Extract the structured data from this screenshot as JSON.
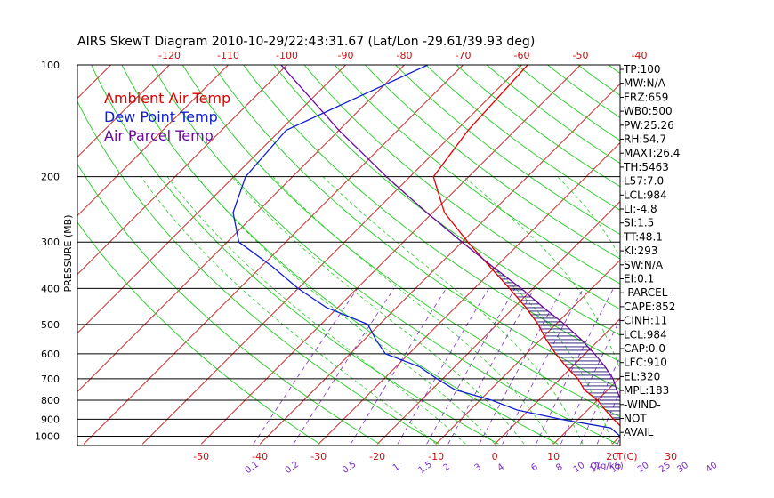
{
  "title": "AIRS SkewT Diagram 2010-10-29/22:43:31.67 (Lat/Lon -29.61/39.93 deg)",
  "chart_data": {
    "type": "line",
    "title": "AIRS SkewT Diagram 2010-10-29/22:43:31.67 (Lat/Lon -29.61/39.93 deg)",
    "ylabel": "PRESSURE (MB)",
    "yscale": "log",
    "ylim": [
      1050,
      100
    ],
    "pressure_ticks": [
      100,
      200,
      300,
      400,
      500,
      600,
      700,
      800,
      900,
      1000
    ],
    "top_temp_ticks": [
      -120,
      -110,
      -100,
      -90,
      -80,
      -70,
      -60,
      -50,
      -40
    ],
    "bottom_temp_ticks": [
      -50,
      -40,
      -30,
      -20,
      -10,
      0,
      10,
      20,
      30
    ],
    "bottom_temp_unit": "T(C)",
    "mixing_ratio_ticks": [
      "0.1",
      "0.2",
      "0.5",
      "1",
      "1.5",
      "2",
      "3",
      "4",
      "6",
      "8",
      "10",
      "12",
      "15",
      "20",
      "25",
      "30",
      "40"
    ],
    "mixing_ratio_unit": "Q(g/kg)",
    "legend": [
      {
        "name": "Ambient Air Temp",
        "color": "#e00000"
      },
      {
        "name": "Dew Point Temp",
        "color": "#1020d0"
      },
      {
        "name": "Air Parcel Temp",
        "color": "#6a0aa0"
      }
    ],
    "legend_position": "top-left",
    "series": [
      {
        "name": "Ambient Air Temp",
        "color": "#e00000",
        "points": [
          [
            1000,
            21.5
          ],
          [
            950,
            19
          ],
          [
            900,
            16
          ],
          [
            850,
            13
          ],
          [
            800,
            10
          ],
          [
            750,
            6
          ],
          [
            700,
            3
          ],
          [
            650,
            -1
          ],
          [
            600,
            -5
          ],
          [
            550,
            -9
          ],
          [
            500,
            -13
          ],
          [
            450,
            -18
          ],
          [
            400,
            -24
          ],
          [
            350,
            -31
          ],
          [
            300,
            -39
          ],
          [
            250,
            -48
          ],
          [
            200,
            -56
          ],
          [
            150,
            -58
          ],
          [
            100,
            -59
          ]
        ]
      },
      {
        "name": "Dew Point Temp",
        "color": "#1020d0",
        "points": [
          [
            1000,
            20
          ],
          [
            950,
            17
          ],
          [
            930,
            13
          ],
          [
            900,
            7
          ],
          [
            850,
            -2
          ],
          [
            800,
            -8
          ],
          [
            750,
            -16
          ],
          [
            700,
            -21
          ],
          [
            650,
            -26
          ],
          [
            600,
            -34
          ],
          [
            550,
            -38
          ],
          [
            500,
            -42
          ],
          [
            450,
            -52
          ],
          [
            400,
            -60
          ],
          [
            350,
            -68
          ],
          [
            300,
            -78
          ],
          [
            250,
            -84
          ],
          [
            200,
            -88
          ],
          [
            150,
            -89
          ],
          [
            100,
            -76
          ]
        ]
      },
      {
        "name": "Air Parcel Temp",
        "color": "#6a0aa0",
        "points": [
          [
            1000,
            22
          ],
          [
            950,
            19.5
          ],
          [
            900,
            18.2
          ],
          [
            850,
            16.3
          ],
          [
            800,
            14
          ],
          [
            750,
            11.5
          ],
          [
            700,
            9
          ],
          [
            650,
            5.6
          ],
          [
            600,
            1.6
          ],
          [
            550,
            -3
          ],
          [
            500,
            -8.5
          ],
          [
            450,
            -15
          ],
          [
            400,
            -22
          ],
          [
            350,
            -30.5
          ],
          [
            300,
            -40
          ],
          [
            250,
            -51
          ],
          [
            200,
            -64
          ],
          [
            150,
            -80
          ],
          [
            100,
            -101
          ]
        ]
      }
    ],
    "cape_shading": {
      "color": "#1a0a6e",
      "from_pressure": 910,
      "to_pressure": 320
    },
    "sidebar": [
      "TP:100",
      "MW:N/A",
      "FRZ:659",
      "WB0:500",
      "PW:25.26",
      "RH:54.7",
      "MAXT:26.4",
      "TH:5463",
      "L57:7.0",
      "LCL:984",
      "LI:-4.8",
      "SI:1.5",
      "TT:48.1",
      "KI:293",
      "SW:N/A",
      "EI:0.1",
      "-PARCEL-",
      "CAPE:852",
      "CINH:11",
      "LCL:984",
      "CAP:0.0",
      "LFC:910",
      "EL:320",
      "MPL:183",
      "-WIND-",
      "NOT",
      "AVAIL"
    ],
    "grid": true
  }
}
